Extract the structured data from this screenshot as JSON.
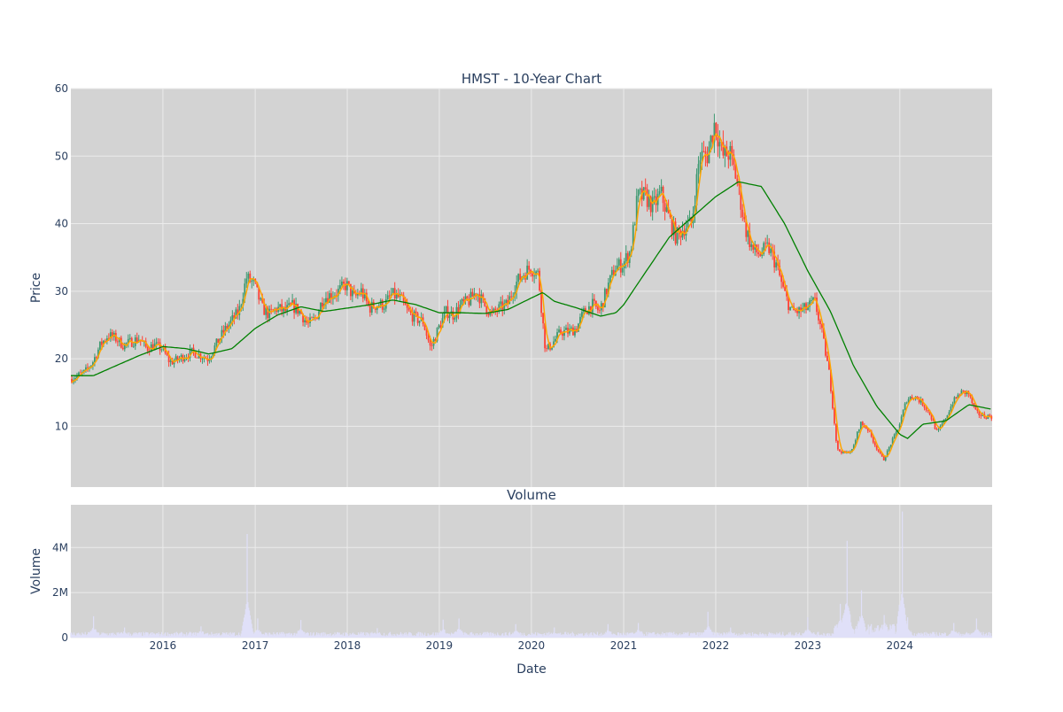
{
  "chart_data": [
    {
      "type": "candlestick",
      "title": "HMST - 10-Year Chart",
      "xlabel": "",
      "ylabel": "Price",
      "ylim": [
        1,
        60
      ],
      "yticks": [
        10,
        20,
        30,
        40,
        50,
        60
      ],
      "xlim": [
        "2015-01-01",
        "2025-01-01"
      ],
      "xticks": [
        "2016",
        "2017",
        "2018",
        "2019",
        "2020",
        "2021",
        "2022",
        "2023",
        "2024"
      ],
      "grid": true,
      "colors": {
        "up": "#3d9970",
        "down": "#ff4136",
        "background": "#d3d3d3",
        "grid": "#ebebeb"
      },
      "close_points": [
        [
          "2015-01-01",
          17.0
        ],
        [
          "2015-02-01",
          17.5
        ],
        [
          "2015-03-01",
          18.0
        ],
        [
          "2015-04-01",
          19.5
        ],
        [
          "2015-05-01",
          22.0
        ],
        [
          "2015-06-01",
          23.5
        ],
        [
          "2015-07-01",
          23.0
        ],
        [
          "2015-08-01",
          22.0
        ],
        [
          "2015-09-01",
          22.5
        ],
        [
          "2015-10-01",
          23.0
        ],
        [
          "2015-11-01",
          21.5
        ],
        [
          "2015-12-01",
          22.0
        ],
        [
          "2016-01-01",
          21.5
        ],
        [
          "2016-02-01",
          19.5
        ],
        [
          "2016-03-01",
          19.8
        ],
        [
          "2016-04-01",
          20.5
        ],
        [
          "2016-05-01",
          21.0
        ],
        [
          "2016-06-01",
          20.5
        ],
        [
          "2016-07-01",
          20.0
        ],
        [
          "2016-08-01",
          22.0
        ],
        [
          "2016-09-01",
          24.0
        ],
        [
          "2016-10-01",
          25.5
        ],
        [
          "2016-11-01",
          27.0
        ],
        [
          "2016-12-01",
          32.0
        ],
        [
          "2017-01-01",
          31.0
        ],
        [
          "2017-02-01",
          27.5
        ],
        [
          "2017-03-01",
          26.5
        ],
        [
          "2017-04-01",
          27.5
        ],
        [
          "2017-05-01",
          27.0
        ],
        [
          "2017-06-01",
          27.8
        ],
        [
          "2017-07-01",
          27.0
        ],
        [
          "2017-08-01",
          25.0
        ],
        [
          "2017-09-01",
          26.0
        ],
        [
          "2017-10-01",
          29.0
        ],
        [
          "2017-11-01",
          29.5
        ],
        [
          "2017-12-01",
          30.0
        ],
        [
          "2018-01-01",
          31.0
        ],
        [
          "2018-02-01",
          29.0
        ],
        [
          "2018-03-01",
          30.0
        ],
        [
          "2018-04-01",
          27.5
        ],
        [
          "2018-05-01",
          28.0
        ],
        [
          "2018-06-01",
          28.0
        ],
        [
          "2018-07-01",
          29.5
        ],
        [
          "2018-08-01",
          29.0
        ],
        [
          "2018-09-01",
          27.0
        ],
        [
          "2018-10-01",
          26.0
        ],
        [
          "2018-11-01",
          25.5
        ],
        [
          "2018-12-01",
          21.5
        ],
        [
          "2019-01-01",
          24.5
        ],
        [
          "2019-02-01",
          27.0
        ],
        [
          "2019-03-01",
          26.5
        ],
        [
          "2019-04-01",
          28.0
        ],
        [
          "2019-05-01",
          28.5
        ],
        [
          "2019-06-01",
          30.0
        ],
        [
          "2019-07-01",
          28.0
        ],
        [
          "2019-08-01",
          26.5
        ],
        [
          "2019-09-01",
          27.5
        ],
        [
          "2019-10-01",
          28.0
        ],
        [
          "2019-11-01",
          31.0
        ],
        [
          "2019-12-01",
          32.5
        ],
        [
          "2020-01-01",
          33.5
        ],
        [
          "2020-02-01",
          32.5
        ],
        [
          "2020-03-01",
          21.0
        ],
        [
          "2020-04-01",
          22.5
        ],
        [
          "2020-05-01",
          24.0
        ],
        [
          "2020-06-01",
          24.0
        ],
        [
          "2020-07-01",
          24.5
        ],
        [
          "2020-08-01",
          27.0
        ],
        [
          "2020-09-01",
          28.0
        ],
        [
          "2020-10-01",
          27.0
        ],
        [
          "2020-11-01",
          30.5
        ],
        [
          "2020-12-01",
          33.5
        ],
        [
          "2021-01-01",
          34.0
        ],
        [
          "2021-02-01",
          36.0
        ],
        [
          "2021-03-01",
          44.0
        ],
        [
          "2021-04-01",
          44.0
        ],
        [
          "2021-05-01",
          42.5
        ],
        [
          "2021-06-01",
          44.5
        ],
        [
          "2021-07-01",
          41.0
        ],
        [
          "2021-08-01",
          38.0
        ],
        [
          "2021-09-01",
          39.5
        ],
        [
          "2021-10-01",
          40.0
        ],
        [
          "2021-11-01",
          50.0
        ],
        [
          "2021-12-01",
          50.0
        ],
        [
          "2022-01-01",
          55.0
        ],
        [
          "2022-02-01",
          50.0
        ],
        [
          "2022-03-01",
          50.5
        ],
        [
          "2022-04-01",
          46.0
        ],
        [
          "2022-05-01",
          39.5
        ],
        [
          "2022-06-01",
          36.0
        ],
        [
          "2022-07-01",
          35.5
        ],
        [
          "2022-08-01",
          36.5
        ],
        [
          "2022-09-01",
          34.0
        ],
        [
          "2022-10-01",
          30.0
        ],
        [
          "2022-11-01",
          27.0
        ],
        [
          "2022-12-01",
          27.0
        ],
        [
          "2023-01-01",
          27.5
        ],
        [
          "2023-02-01",
          28.5
        ],
        [
          "2023-03-01",
          24.0
        ],
        [
          "2023-04-01",
          17.5
        ],
        [
          "2023-05-01",
          6.5
        ],
        [
          "2023-06-01",
          6.0
        ],
        [
          "2023-07-01",
          6.5
        ],
        [
          "2023-08-01",
          10.5
        ],
        [
          "2023-09-01",
          9.5
        ],
        [
          "2023-10-01",
          7.0
        ],
        [
          "2023-11-01",
          5.0
        ],
        [
          "2023-12-01",
          7.5
        ],
        [
          "2024-01-01",
          10.0
        ],
        [
          "2024-02-01",
          14.0
        ],
        [
          "2024-03-01",
          14.5
        ],
        [
          "2024-04-01",
          13.5
        ],
        [
          "2024-05-01",
          12.0
        ],
        [
          "2024-06-01",
          9.0
        ],
        [
          "2024-07-01",
          11.0
        ],
        [
          "2024-08-01",
          13.5
        ],
        [
          "2024-09-01",
          15.0
        ],
        [
          "2024-10-01",
          15.0
        ],
        [
          "2024-11-01",
          12.0
        ],
        [
          "2024-12-01",
          11.5
        ],
        [
          "2025-01-01",
          11.5
        ]
      ],
      "overlays": [
        {
          "kind": "short moving average",
          "color": "#ffa500",
          "window_days": 20
        },
        {
          "kind": "long moving average",
          "color": "#008000",
          "points": [
            [
              "2015-01-01",
              17.5
            ],
            [
              "2015-04-01",
              17.5
            ],
            [
              "2015-07-01",
              19.0
            ],
            [
              "2015-10-01",
              20.5
            ],
            [
              "2016-01-01",
              21.8
            ],
            [
              "2016-04-01",
              21.5
            ],
            [
              "2016-07-01",
              20.7
            ],
            [
              "2016-10-01",
              21.5
            ],
            [
              "2017-01-01",
              24.5
            ],
            [
              "2017-04-01",
              26.5
            ],
            [
              "2017-07-01",
              27.7
            ],
            [
              "2017-10-01",
              27.0
            ],
            [
              "2018-01-01",
              27.5
            ],
            [
              "2018-04-01",
              28.0
            ],
            [
              "2018-07-01",
              28.7
            ],
            [
              "2018-10-01",
              28.0
            ],
            [
              "2019-01-01",
              26.8
            ],
            [
              "2019-04-01",
              26.8
            ],
            [
              "2019-07-01",
              26.7
            ],
            [
              "2019-10-01",
              27.3
            ],
            [
              "2020-01-01",
              29.0
            ],
            [
              "2020-02-15",
              29.8
            ],
            [
              "2020-04-01",
              28.5
            ],
            [
              "2020-07-01",
              27.5
            ],
            [
              "2020-10-01",
              26.3
            ],
            [
              "2020-12-01",
              26.8
            ],
            [
              "2021-01-01",
              28.0
            ],
            [
              "2021-04-01",
              33.0
            ],
            [
              "2021-07-01",
              38.0
            ],
            [
              "2021-10-01",
              41.0
            ],
            [
              "2022-01-01",
              44.0
            ],
            [
              "2022-04-01",
              46.2
            ],
            [
              "2022-07-01",
              45.5
            ],
            [
              "2022-10-01",
              40.0
            ],
            [
              "2023-01-01",
              33.0
            ],
            [
              "2023-04-01",
              27.0
            ],
            [
              "2023-07-01",
              19.0
            ],
            [
              "2023-10-01",
              13.0
            ],
            [
              "2024-01-01",
              8.8
            ],
            [
              "2024-02-01",
              8.2
            ],
            [
              "2024-04-01",
              10.3
            ],
            [
              "2024-07-01",
              10.8
            ],
            [
              "2024-10-01",
              13.2
            ],
            [
              "2025-01-01",
              12.5
            ]
          ]
        }
      ]
    },
    {
      "type": "bar",
      "title": "Volume",
      "xlabel": "Date",
      "ylabel": "Volume",
      "ylim": [
        0,
        5900000
      ],
      "yticks": [
        {
          "value": 0,
          "label": "0"
        },
        {
          "value": 2000000,
          "label": "2M"
        },
        {
          "value": 4000000,
          "label": "4M"
        }
      ],
      "grid": true,
      "colors": {
        "bars": "#e0e0f8",
        "background": "#d3d3d3"
      },
      "baseline_volume": 150000,
      "spikes": [
        [
          "2015-04-01",
          950000
        ],
        [
          "2015-08-01",
          450000
        ],
        [
          "2016-06-01",
          500000
        ],
        [
          "2016-12-01",
          4600000
        ],
        [
          "2017-01-10",
          850000
        ],
        [
          "2017-07-01",
          780000
        ],
        [
          "2018-05-01",
          420000
        ],
        [
          "2019-01-15",
          800000
        ],
        [
          "2019-03-20",
          850000
        ],
        [
          "2019-11-01",
          600000
        ],
        [
          "2020-04-01",
          450000
        ],
        [
          "2020-11-01",
          600000
        ],
        [
          "2021-03-01",
          650000
        ],
        [
          "2021-12-01",
          1150000
        ],
        [
          "2022-03-01",
          450000
        ],
        [
          "2023-01-01",
          900000
        ],
        [
          "2023-05-10",
          1500000
        ],
        [
          "2023-06-05",
          4300000
        ],
        [
          "2023-08-01",
          2100000
        ],
        [
          "2023-11-01",
          1000000
        ],
        [
          "2024-01-10",
          5600000
        ],
        [
          "2024-02-01",
          900000
        ],
        [
          "2024-08-01",
          650000
        ],
        [
          "2024-11-01",
          850000
        ]
      ]
    }
  ]
}
